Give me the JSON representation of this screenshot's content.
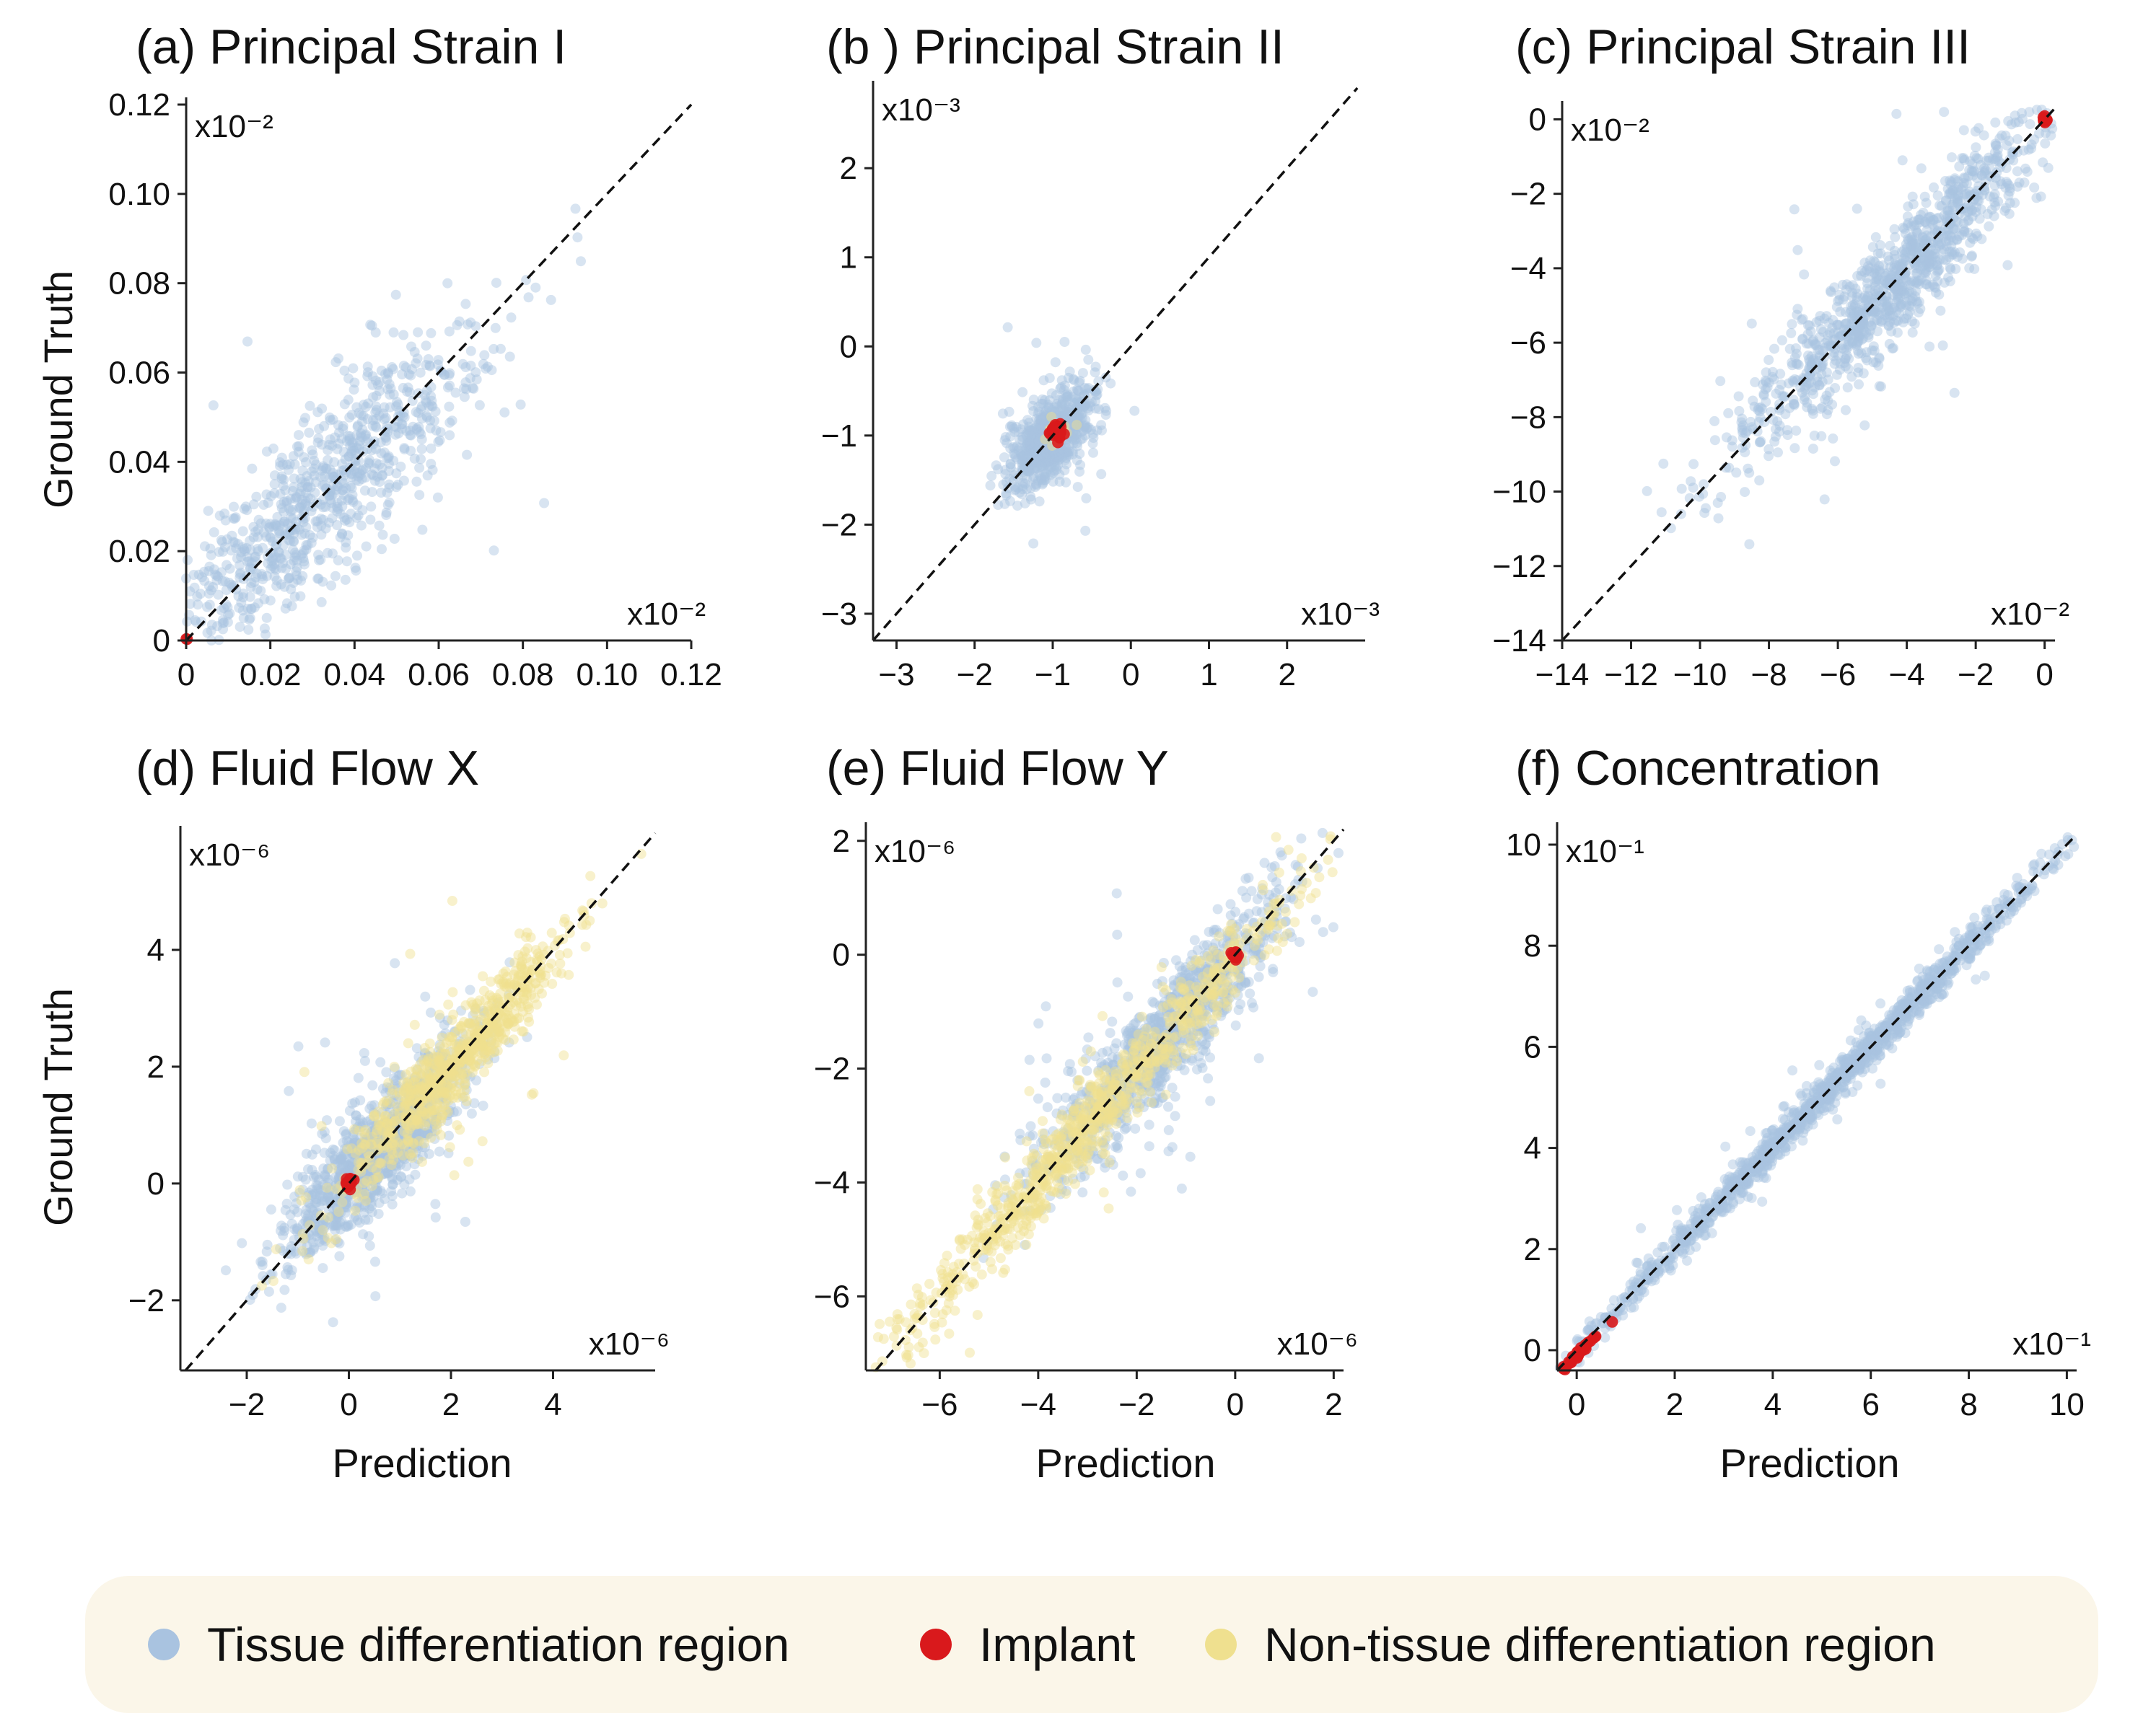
{
  "legend": {
    "items": [
      {
        "label": "Tissue differentiation region",
        "color": "#a9c3e0"
      },
      {
        "label": "Implant",
        "color": "#d9191c"
      },
      {
        "label": "Non-tissue differentiation region",
        "color": "#efe08f"
      }
    ]
  },
  "chart_data": [
    {
      "type": "scatter",
      "title": "(a) Principal Strain I",
      "xlabel": "",
      "ylabel": "Ground Truth",
      "xlim": [
        0,
        0.12
      ],
      "ylim": [
        0,
        0.12
      ],
      "xticks": [
        0,
        0.02,
        0.04,
        0.06,
        0.08,
        0.1,
        0.12
      ],
      "xtick_labels": [
        "0",
        "0.02",
        "0.04",
        "0.06",
        "0.08",
        "0.10",
        "0.12"
      ],
      "yticks": [
        0,
        0.02,
        0.04,
        0.06,
        0.08,
        0.1,
        0.12
      ],
      "ytick_labels": [
        "0",
        "0.02",
        "0.04",
        "0.06",
        "0.08",
        "0.10",
        "0.12"
      ],
      "x_multiplier": "x10⁻²",
      "y_multiplier": "x10⁻²",
      "reference_line": "y = x",
      "series": [
        {
          "name": "Tissue differentiation region",
          "color": "#a9c3e0",
          "center": [
            0.03,
            0.03
          ],
          "spread": 0.075,
          "noise": 0.007,
          "count": 900
        },
        {
          "name": "Implant",
          "color": "#d9191c",
          "center": [
            0.0,
            0.0
          ],
          "spread": 0.001,
          "noise": 0.0004,
          "count": 15
        }
      ]
    },
    {
      "type": "scatter",
      "title": "(b ) Principal Strain II",
      "xlabel": "",
      "ylabel": "",
      "xlim": [
        -3.3,
        3.0
      ],
      "ylim": [
        -3.3,
        2.9
      ],
      "xticks": [
        -3,
        -2,
        -1,
        0,
        1,
        2
      ],
      "xtick_labels": [
        "−3",
        "−2",
        "−1",
        "0",
        "1",
        "2"
      ],
      "yticks": [
        -3,
        -2,
        -1,
        0,
        1,
        2
      ],
      "ytick_labels": [
        "−3",
        "−2",
        "−1",
        "0",
        "1",
        "2"
      ],
      "x_multiplier": "x10⁻³",
      "y_multiplier": "x10⁻³",
      "reference_line": "y = x",
      "series": [
        {
          "name": "Tissue differentiation region",
          "color": "#a9c3e0",
          "center": [
            -1.0,
            -1.0
          ],
          "spread": 1.0,
          "noise": 0.18,
          "count": 700
        },
        {
          "name": "Non-tissue differentiation region",
          "color": "#efe08f",
          "center": [
            -0.95,
            -0.95
          ],
          "spread": 0.12,
          "noise": 0.05,
          "count": 60
        },
        {
          "name": "Implant",
          "color": "#d9191c",
          "center": [
            -0.95,
            -0.95
          ],
          "spread": 0.1,
          "noise": 0.04,
          "count": 40
        }
      ]
    },
    {
      "type": "scatter",
      "title": "(c) Principal Strain III",
      "xlabel": "",
      "ylabel": "",
      "xlim": [
        -14,
        0.3
      ],
      "ylim": [
        -14,
        0.3
      ],
      "xticks": [
        -14,
        -12,
        -10,
        -8,
        -6,
        -4,
        -2,
        0
      ],
      "xtick_labels": [
        "−14",
        "−12",
        "−10",
        "−8",
        "−6",
        "−4",
        "−2",
        "0"
      ],
      "yticks": [
        -14,
        -12,
        -10,
        -8,
        -6,
        -4,
        -2,
        0
      ],
      "ytick_labels": [
        "−14",
        "−12",
        "−10",
        "−8",
        "−6",
        "−4",
        "−2",
        "0"
      ],
      "x_multiplier": "x10⁻²",
      "y_multiplier": "x10⁻²",
      "reference_line": "y = x",
      "series": [
        {
          "name": "Tissue differentiation region",
          "color": "#a9c3e0",
          "center": [
            -4.5,
            -4.5
          ],
          "spread": 9.0,
          "noise": 0.55,
          "count": 1100
        },
        {
          "name": "Implant",
          "color": "#d9191c",
          "center": [
            0.0,
            0.0
          ],
          "spread": 0.1,
          "noise": 0.05,
          "count": 15
        }
      ]
    },
    {
      "type": "scatter",
      "title": "(d) Fluid Flow X",
      "xlabel": "Prediction",
      "ylabel": "Ground Truth",
      "xlim": [
        -3.3,
        6.0
      ],
      "ylim": [
        -3.2,
        6.0
      ],
      "xticks": [
        -2,
        0,
        2,
        4
      ],
      "xtick_labels": [
        "−2",
        "0",
        "2",
        "4"
      ],
      "yticks": [
        -2,
        0,
        2,
        4
      ],
      "ytick_labels": [
        "−2",
        "0",
        "2",
        "4"
      ],
      "x_multiplier": "x10⁻⁶",
      "y_multiplier": "x10⁻⁶",
      "reference_line": "y = x",
      "series": [
        {
          "name": "Tissue differentiation region",
          "color": "#a9c3e0",
          "center": [
            0.5,
            0.5
          ],
          "spread": 3.5,
          "noise": 0.35,
          "count": 1100
        },
        {
          "name": "Non-tissue differentiation region",
          "color": "#efe08f",
          "center": [
            2.0,
            2.0
          ],
          "spread": 4.5,
          "noise": 0.25,
          "count": 800
        },
        {
          "name": "Implant",
          "color": "#d9191c",
          "center": [
            0.0,
            0.0
          ],
          "spread": 0.12,
          "noise": 0.04,
          "count": 20
        }
      ]
    },
    {
      "type": "scatter",
      "title": "(e) Fluid Flow Y",
      "xlabel": "Prediction",
      "ylabel": "",
      "xlim": [
        -7.5,
        2.2
      ],
      "ylim": [
        -7.3,
        2.2
      ],
      "xticks": [
        -6,
        -4,
        -2,
        0,
        2
      ],
      "xtick_labels": [
        "−6",
        "−4",
        "−2",
        "0",
        "2"
      ],
      "yticks": [
        -6,
        -4,
        -2,
        0,
        2
      ],
      "ytick_labels": [
        "−6",
        "−4",
        "−2",
        "0",
        "2"
      ],
      "x_multiplier": "x10⁻⁶",
      "y_multiplier": "x10⁻⁶",
      "reference_line": "y = x",
      "series": [
        {
          "name": "Tissue differentiation region",
          "color": "#a9c3e0",
          "center": [
            -1.5,
            -1.5
          ],
          "spread": 5.0,
          "noise": 0.35,
          "count": 1000
        },
        {
          "name": "Non-tissue differentiation region",
          "color": "#efe08f",
          "center": [
            -3.0,
            -3.0
          ],
          "spread": 8.0,
          "noise": 0.25,
          "count": 900
        },
        {
          "name": "Implant",
          "color": "#d9191c",
          "center": [
            0.0,
            0.0
          ],
          "spread": 0.1,
          "noise": 0.04,
          "count": 20
        }
      ]
    },
    {
      "type": "scatter",
      "title": "(f) Concentration",
      "xlabel": "Prediction",
      "ylabel": "",
      "xlim": [
        -0.4,
        10.2
      ],
      "ylim": [
        -0.4,
        10.3
      ],
      "xticks": [
        0,
        2,
        4,
        6,
        8,
        10
      ],
      "xtick_labels": [
        "0",
        "2",
        "4",
        "6",
        "8",
        "10"
      ],
      "yticks": [
        0,
        2,
        4,
        6,
        8,
        10
      ],
      "ytick_labels": [
        "0",
        "2",
        "4",
        "6",
        "8",
        "10"
      ],
      "x_multiplier": "x10⁻¹",
      "y_multiplier": "x10⁻¹",
      "reference_line": "y = x",
      "series": [
        {
          "name": "Tissue differentiation region",
          "color": "#a9c3e0",
          "center": [
            5.0,
            5.0
          ],
          "spread": 10.0,
          "noise": 0.12,
          "count": 1400
        },
        {
          "name": "Implant",
          "color": "#d9191c",
          "center": [
            0.1,
            0.0
          ],
          "spread": 0.8,
          "noise": 0.02,
          "count": 40
        }
      ]
    }
  ]
}
